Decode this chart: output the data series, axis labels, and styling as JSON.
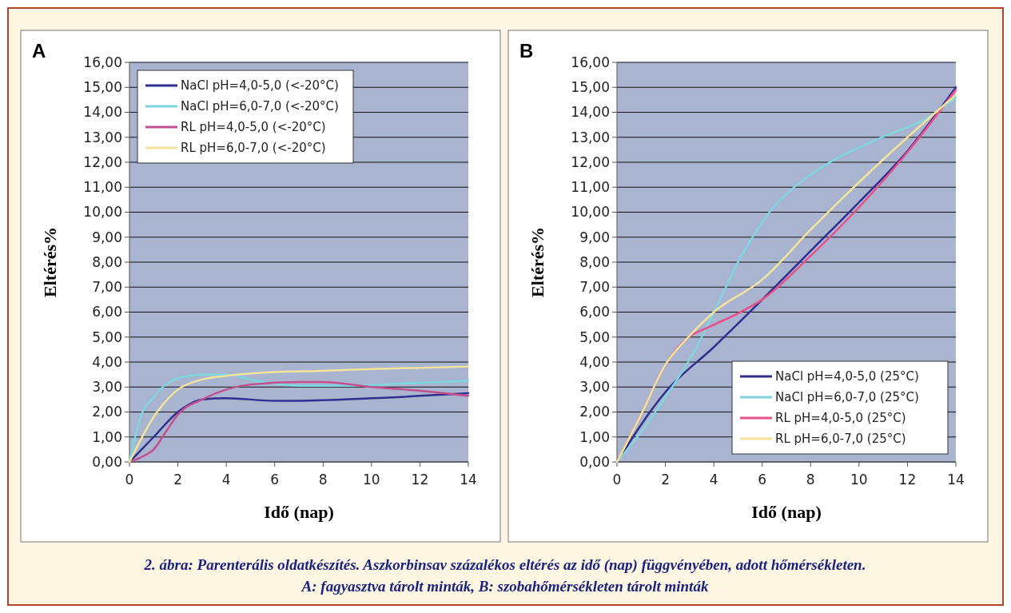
{
  "chart_data": [
    {
      "type": "line",
      "title": "A",
      "xlabel": "Idő (nap)",
      "ylabel": "Eltérés%",
      "xlim": [
        0,
        14
      ],
      "xticks": [
        0,
        2,
        4,
        6,
        8,
        10,
        12,
        14
      ],
      "ylim": [
        0,
        16
      ],
      "yticks": [
        {
          "value": 0,
          "label": "0,00"
        },
        {
          "value": 1,
          "label": "1,00"
        },
        {
          "value": 2,
          "label": "2,00"
        },
        {
          "value": 3,
          "label": "3,00"
        },
        {
          "value": 4,
          "label": "4,00"
        },
        {
          "value": 5,
          "label": "5,00"
        },
        {
          "value": 6,
          "label": "6,00"
        },
        {
          "value": 7,
          "label": "7,00"
        },
        {
          "value": 8,
          "label": "8,00"
        },
        {
          "value": 9,
          "label": "9,00"
        },
        {
          "value": 10,
          "label": "10,00"
        },
        {
          "value": 11,
          "label": "11,00"
        },
        {
          "value": 12,
          "label": "12,00"
        },
        {
          "value": 13,
          "label": "13,00"
        },
        {
          "value": 14,
          "label": "14,00"
        },
        {
          "value": 15,
          "label": "15,00"
        },
        {
          "value": 16,
          "label": "16,00"
        }
      ],
      "grid": "y",
      "legend": "top left",
      "line_style": "solid",
      "series": [
        {
          "name": "NaCl pH=4,0-5,0 (<-20°C)",
          "color": "#2e2f8f",
          "x": [
            0,
            1,
            2,
            3,
            4,
            6,
            7,
            10,
            14
          ],
          "values": [
            0,
            1.0,
            2.0,
            2.5,
            2.55,
            2.45,
            2.45,
            2.55,
            2.75
          ]
        },
        {
          "name": "NaCl pH=6,0-7,0 (<-20°C)",
          "color": "#7fd6e0",
          "x": [
            0,
            0.5,
            1,
            1.5,
            2,
            3,
            4,
            5.3,
            7,
            9,
            11.5,
            14
          ],
          "values": [
            0,
            1.9,
            2.6,
            3.1,
            3.35,
            3.5,
            3.5,
            3.24,
            3.05,
            3.05,
            3.15,
            3.25
          ]
        },
        {
          "name": "RL pH=4,0-5,0 (<-20°C)",
          "color": "#c2508f",
          "x": [
            0,
            0.5,
            1,
            1.5,
            2,
            3,
            4,
            5,
            7,
            8,
            10,
            12,
            14
          ],
          "values": [
            0,
            0.2,
            0.5,
            1.2,
            1.9,
            2.5,
            2.9,
            3.1,
            3.2,
            3.2,
            3.0,
            2.85,
            2.65
          ]
        },
        {
          "name": "RL pH=6,0-7,0 (<-20°C)",
          "color": "#f3e39b",
          "x": [
            0,
            1,
            2,
            3,
            4,
            6,
            8,
            10,
            14
          ],
          "values": [
            0,
            1.8,
            2.9,
            3.3,
            3.45,
            3.6,
            3.65,
            3.72,
            3.82
          ]
        }
      ]
    },
    {
      "type": "line",
      "title": "B",
      "xlabel": "Idő (nap)",
      "ylabel": "Eltérés%",
      "xlim": [
        0,
        14
      ],
      "xticks": [
        0,
        2,
        4,
        6,
        8,
        10,
        12,
        14
      ],
      "ylim": [
        0,
        16
      ],
      "yticks": [
        {
          "value": 0,
          "label": "0,00"
        },
        {
          "value": 1,
          "label": "1,00"
        },
        {
          "value": 2,
          "label": "2,00"
        },
        {
          "value": 3,
          "label": "3,00"
        },
        {
          "value": 4,
          "label": "4,00"
        },
        {
          "value": 5,
          "label": "5,00"
        },
        {
          "value": 6,
          "label": "6,00"
        },
        {
          "value": 7,
          "label": "7,00"
        },
        {
          "value": 8,
          "label": "8,00"
        },
        {
          "value": 9,
          "label": "9,00"
        },
        {
          "value": 10,
          "label": "10,00"
        },
        {
          "value": 11,
          "label": "11,00"
        },
        {
          "value": 12,
          "label": "12,00"
        },
        {
          "value": 13,
          "label": "13,00"
        },
        {
          "value": 14,
          "label": "14,00"
        },
        {
          "value": 15,
          "label": "15,00"
        },
        {
          "value": 16,
          "label": "16,00"
        }
      ],
      "grid": "y",
      "legend": "bottom right",
      "line_style": "solid",
      "series": [
        {
          "name": "NaCl pH=4,0-5,0 (25°C)",
          "color": "#2e2f8f",
          "x": [
            0,
            2,
            4,
            6,
            8,
            10,
            12,
            14
          ],
          "values": [
            0,
            2.8,
            4.6,
            6.5,
            8.45,
            10.4,
            12.45,
            15.0
          ]
        },
        {
          "name": "NaCl pH=6,0-7,0 (25°C)",
          "color": "#7fd6e0",
          "x": [
            0,
            1,
            2,
            3,
            3.5,
            4,
            4.5,
            5,
            5.6,
            6.3,
            7.2,
            8.8,
            10.7,
            13.2,
            14
          ],
          "values": [
            0,
            1.2,
            2.6,
            4.1,
            5.0,
            6.0,
            7.0,
            8.0,
            9.0,
            10.0,
            10.9,
            12.0,
            12.9,
            14.0,
            14.6
          ]
        },
        {
          "name": "RL pH=4,0-5,0 (25°C)",
          "color": "#e8508a",
          "x": [
            0,
            1,
            2,
            2.9,
            3.8,
            5,
            6,
            8,
            10,
            12,
            14
          ],
          "values": [
            0,
            1.9,
            3.9,
            4.95,
            5.4,
            5.95,
            6.5,
            8.25,
            10.2,
            12.4,
            14.9
          ]
        },
        {
          "name": "RL pH=6,0-7,0 (25°C)",
          "color": "#f3e39b",
          "x": [
            0,
            1,
            2,
            3,
            4,
            6,
            8,
            10,
            12,
            14
          ],
          "values": [
            0,
            1.9,
            3.9,
            5.05,
            6.0,
            7.3,
            9.3,
            11.2,
            13.0,
            14.7
          ]
        }
      ],
      "annotations": [
        "2. ábra: Parenterális oldatkészítés. Aszkorbinsav százalékos eltérés az idő (nap) függvényében, adott hőmérsékleten.",
        "A: fagyasztva tárolt minták, B: szobahőmérsékleten tárolt minták"
      ]
    }
  ]
}
